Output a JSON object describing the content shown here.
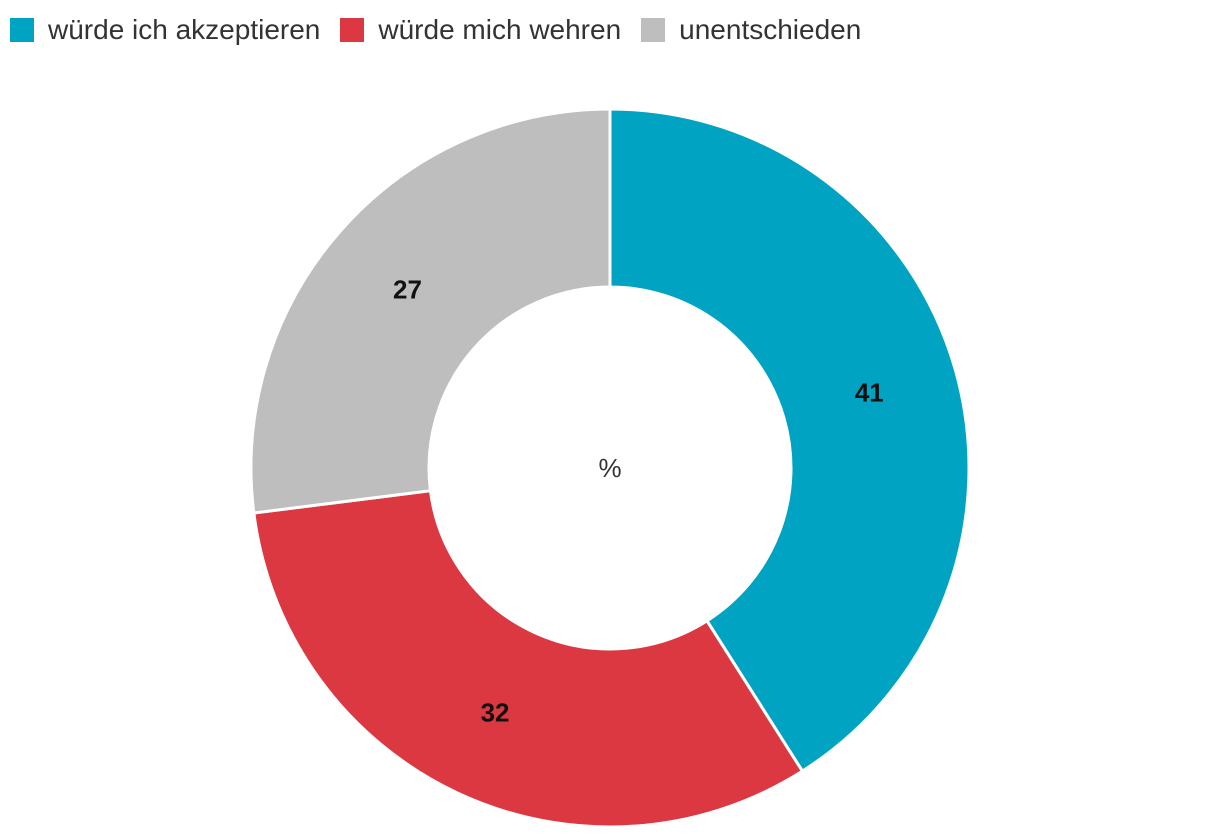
{
  "chart_data": {
    "type": "pie",
    "variant": "donut",
    "center_label": "%",
    "legend_position": "top-left",
    "categories": [
      "würde ich akzeptieren",
      "würde mich wehren",
      "unentschieden"
    ],
    "values": [
      41,
      32,
      27
    ],
    "colors": [
      "#00a4c2",
      "#db3841",
      "#bebebe"
    ],
    "data_labels": [
      "41",
      "32",
      "27"
    ]
  }
}
